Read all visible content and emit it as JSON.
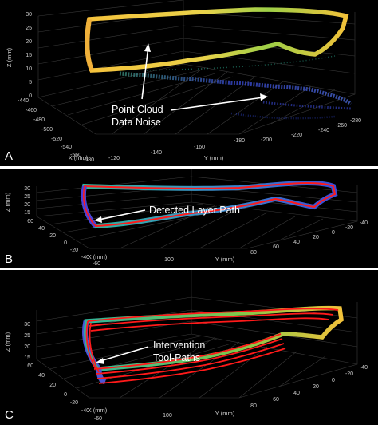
{
  "colors": {
    "background": "#000000",
    "separator": "#ffffff",
    "tool_path": "#ff1a1a",
    "cloud_low": "#3a4bd8",
    "cloud_mid": "#2fb59a",
    "cloud_high": "#f2c23a",
    "annotation": "#ffffff"
  },
  "chart_data": [
    {
      "type": "scatter",
      "panel_label": "A",
      "annotation": [
        "Point Cloud",
        "Data Noise"
      ],
      "zlabel": "Z (mm)",
      "xlabel": "X (mm)",
      "ylabel": "Y (mm)",
      "z_ticks": [
        "30",
        "25",
        "20",
        "15",
        "10",
        "5",
        "0"
      ],
      "x_ticks": [
        "-440",
        "-460",
        "-480",
        "-500",
        "-520",
        "-540",
        "-560",
        "-580"
      ],
      "y_ticks": [
        "-120",
        "-140",
        "-160",
        "-180",
        "-200",
        "-220",
        "-240",
        "-260",
        "-280"
      ]
    },
    {
      "type": "scatter",
      "panel_label": "B",
      "annotation": [
        "Detected Layer Path"
      ],
      "zlabel": "Z (mm)",
      "xlabel": "X (mm)",
      "ylabel": "Y (mm)",
      "z_ticks": [
        "30",
        "25",
        "20",
        "15"
      ],
      "x_ticks": [
        "60",
        "40",
        "20",
        "0",
        "-20",
        "-40",
        "-60"
      ],
      "y_ticks": [
        "100",
        "80",
        "60",
        "40",
        "20",
        "0",
        "-20",
        "-40"
      ]
    },
    {
      "type": "scatter",
      "panel_label": "C",
      "annotation": [
        "Intervention",
        "Tool-Paths"
      ],
      "zlabel": "Z (mm)",
      "xlabel": "X (mm)",
      "ylabel": "Y (mm)",
      "z_ticks": [
        "30",
        "25",
        "20",
        "15"
      ],
      "x_ticks": [
        "60",
        "40",
        "20",
        "0",
        "-20",
        "-40",
        "-60"
      ],
      "y_ticks": [
        "100",
        "80",
        "60",
        "40",
        "20",
        "0",
        "-20",
        "-40"
      ]
    }
  ]
}
